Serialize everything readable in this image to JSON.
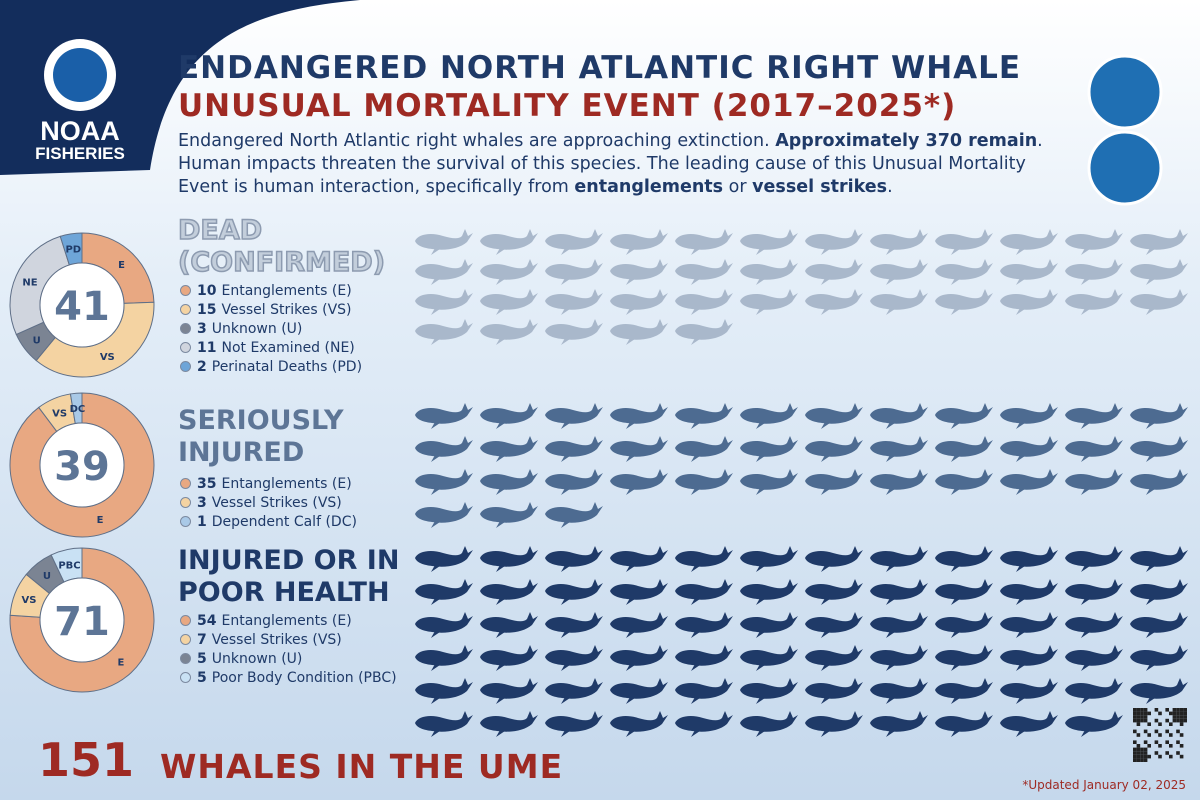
{
  "logo": {
    "name": "NOAA",
    "sub": "FISHERIES"
  },
  "title": {
    "line1": "ENDANGERED NORTH ATLANTIC RIGHT WHALE",
    "line2": "UNUSUAL MORTALITY EVENT (2017–2025*)"
  },
  "intro": [
    {
      "text": "Endangered North Atlantic right whales are approaching extinction. ",
      "bold": false
    },
    {
      "text": "Approximately 370 remain",
      "bold": true
    },
    {
      "text": ". Human impacts threaten the survival of this species. The leading cause of this Unusual Mortality Event is human interaction, specifically from ",
      "bold": false
    },
    {
      "text": "entanglements",
      "bold": true
    },
    {
      "text": " or ",
      "bold": false
    },
    {
      "text": "vessel strikes",
      "bold": true
    },
    {
      "text": ".",
      "bold": false
    }
  ],
  "sections": [
    {
      "total": 41,
      "title_lines": [
        "DEAD",
        "(CONFIRMED)"
      ],
      "title_color": "#c3cedb",
      "whale_color": "#a9b8cb",
      "items": [
        {
          "count": 10,
          "label": "Entanglements (E)",
          "abbr": "E",
          "color": "#e8a882"
        },
        {
          "count": 15,
          "label": "Vessel Strikes (VS)",
          "abbr": "VS",
          "color": "#f4d3a2"
        },
        {
          "count": 3,
          "label": "Unknown (U)",
          "abbr": "U",
          "color": "#7b8493"
        },
        {
          "count": 11,
          "label": "Not Examined (NE)",
          "abbr": "NE",
          "color": "#d0d5de"
        },
        {
          "count": 2,
          "label": "Perinatal Deaths (PD)",
          "abbr": "PD",
          "color": "#6ea5d8"
        }
      ]
    },
    {
      "total": 39,
      "title_lines": [
        "SERIOUSLY",
        "INJURED"
      ],
      "title_color": "#5d7596",
      "whale_color": "#4d6b91",
      "items": [
        {
          "count": 35,
          "label": "Entanglements (E)",
          "abbr": "E",
          "color": "#e8a882"
        },
        {
          "count": 3,
          "label": "Vessel Strikes (VS)",
          "abbr": "VS",
          "color": "#f4d3a2"
        },
        {
          "count": 1,
          "label": "Dependent Calf (DC)",
          "abbr": "DC",
          "color": "#a9c9e7"
        }
      ]
    },
    {
      "total": 71,
      "title_lines": [
        "INJURED OR IN",
        "POOR HEALTH"
      ],
      "title_color": "#1f3a68",
      "whale_color": "#1f3a68",
      "items": [
        {
          "count": 54,
          "label": "Entanglements (E)",
          "abbr": "E",
          "color": "#e8a882"
        },
        {
          "count": 7,
          "label": "Vessel Strikes (VS)",
          "abbr": "VS",
          "color": "#f4d3a2"
        },
        {
          "count": 5,
          "label": "Unknown (U)",
          "abbr": "U",
          "color": "#7b8493"
        },
        {
          "count": 5,
          "label": "Poor Body Condition (PBC)",
          "abbr": "PBC",
          "color": "#c9e1f4"
        }
      ]
    }
  ],
  "footer": {
    "total": 151,
    "label": "WHALES IN THE UME"
  },
  "updated": "*Updated January 02, 2025"
}
